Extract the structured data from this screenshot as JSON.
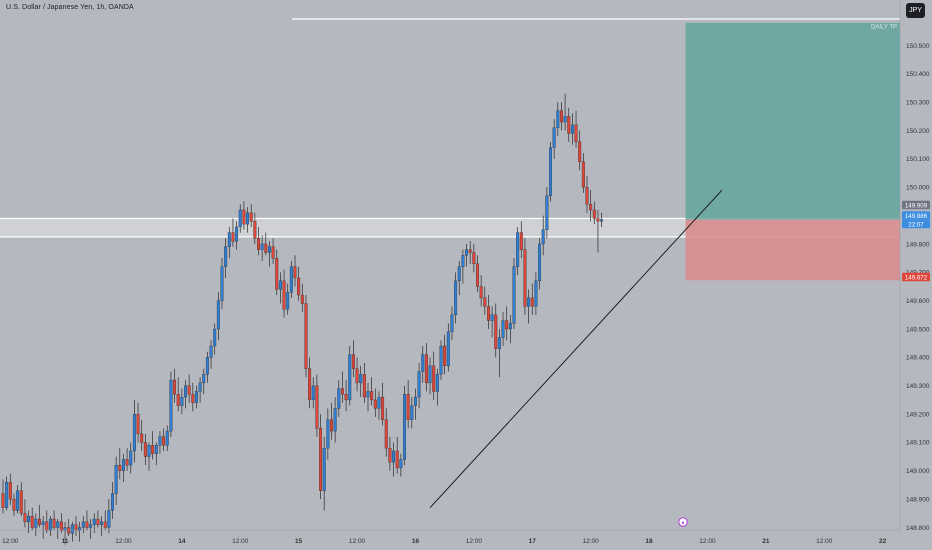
{
  "header": {
    "title": "U.S. Dollar / Japanese Yen, 1h, OANDA",
    "currency_button": "JPY"
  },
  "chart_data": {
    "type": "candlestick",
    "title": "U.S. Dollar / Japanese Yen, 1h, OANDA",
    "ylim": [
      148.8,
      150.58
    ],
    "y_ticks": [
      "148.800",
      "148.900",
      "149.000",
      "149.100",
      "149.200",
      "149.300",
      "149.400",
      "149.500",
      "149.600",
      "149.700",
      "149.800",
      "149.900",
      "150.000",
      "150.100",
      "150.200",
      "150.300",
      "150.400",
      "150.500"
    ],
    "x_ticks": [
      "12:00",
      "11",
      "12:00",
      "14",
      "12:00",
      "15",
      "12:00",
      "16",
      "12:00",
      "17",
      "12:00",
      "18",
      "12:00",
      "21",
      "12:00",
      "22"
    ],
    "x_index_range": [
      0,
      162
    ],
    "x_tick_index": [
      2,
      17,
      33,
      49,
      65,
      81,
      97,
      113,
      129,
      145,
      161,
      177,
      193,
      209,
      225,
      241
    ],
    "colors": {
      "up": "#2f7fd6",
      "down": "#e0453a",
      "target_zone": "#5fa49b",
      "stop_zone": "#d8898a",
      "support_band": "#ffffff"
    },
    "price_labels": [
      {
        "text": "149.909",
        "bg": "#707582"
      },
      {
        "text": "149.886",
        "bg": "#3b8de0"
      },
      {
        "text": "22:07",
        "bg": "#3b8de0"
      },
      {
        "text": "149.672",
        "bg": "#e0453a"
      }
    ],
    "annotations": [
      {
        "text": "DAILY TP",
        "price": 150.55
      },
      {
        "type": "hline",
        "price": 150.585
      },
      {
        "type": "support_band",
        "from": 149.825,
        "to": 149.89
      },
      {
        "type": "trendline",
        "from": [
          117,
          148.87
        ],
        "to": [
          197,
          149.99
        ]
      },
      {
        "type": "long_position",
        "x_from": 187,
        "x_to": 256,
        "entry": 149.886,
        "target": 150.58,
        "stop": 149.672
      }
    ],
    "candles": [
      [
        148.92,
        148.97,
        148.85,
        148.87
      ],
      [
        148.87,
        148.98,
        148.86,
        148.96
      ],
      [
        148.96,
        148.99,
        148.88,
        148.9
      ],
      [
        148.9,
        148.92,
        148.84,
        148.86
      ],
      [
        148.86,
        148.95,
        148.85,
        148.93
      ],
      [
        148.93,
        148.96,
        148.84,
        148.85
      ],
      [
        148.85,
        148.9,
        148.8,
        148.82
      ],
      [
        148.82,
        148.86,
        148.78,
        148.84
      ],
      [
        148.84,
        148.87,
        148.79,
        148.8
      ],
      [
        148.8,
        148.85,
        148.77,
        148.83
      ],
      [
        148.83,
        148.88,
        148.8,
        148.81
      ],
      [
        148.81,
        148.84,
        148.76,
        148.82
      ],
      [
        148.82,
        148.86,
        148.78,
        148.79
      ],
      [
        148.79,
        148.84,
        148.77,
        148.83
      ],
      [
        148.83,
        148.86,
        148.79,
        148.8
      ],
      [
        148.8,
        148.83,
        148.76,
        148.82
      ],
      [
        148.82,
        148.85,
        148.78,
        148.79
      ],
      [
        148.79,
        148.82,
        148.74,
        148.8
      ],
      [
        148.8,
        148.83,
        148.77,
        148.78
      ],
      [
        148.78,
        148.82,
        148.75,
        148.81
      ],
      [
        148.81,
        148.84,
        148.77,
        148.79
      ],
      [
        148.79,
        148.82,
        148.75,
        148.8
      ],
      [
        148.8,
        148.84,
        148.78,
        148.82
      ],
      [
        148.82,
        148.86,
        148.79,
        148.8
      ],
      [
        148.8,
        148.83,
        148.76,
        148.81
      ],
      [
        148.81,
        148.85,
        148.78,
        148.83
      ],
      [
        148.83,
        148.86,
        148.8,
        148.81
      ],
      [
        148.81,
        148.84,
        148.77,
        148.82
      ],
      [
        148.82,
        148.86,
        148.79,
        148.8
      ],
      [
        148.8,
        148.9,
        148.78,
        148.86
      ],
      [
        148.86,
        148.96,
        148.83,
        148.92
      ],
      [
        148.92,
        149.05,
        148.88,
        149.02
      ],
      [
        149.02,
        149.08,
        148.97,
        149.0
      ],
      [
        149.0,
        149.06,
        148.96,
        149.04
      ],
      [
        149.04,
        149.08,
        149.0,
        149.02
      ],
      [
        149.02,
        149.1,
        148.99,
        149.07
      ],
      [
        149.07,
        149.25,
        149.03,
        149.2
      ],
      [
        149.2,
        149.24,
        149.1,
        149.13
      ],
      [
        149.13,
        149.18,
        149.07,
        149.1
      ],
      [
        149.1,
        149.13,
        149.02,
        149.05
      ],
      [
        149.05,
        149.1,
        149.0,
        149.09
      ],
      [
        149.09,
        149.14,
        149.04,
        149.06
      ],
      [
        149.06,
        149.1,
        149.02,
        149.09
      ],
      [
        149.09,
        149.14,
        149.06,
        149.12
      ],
      [
        149.12,
        149.15,
        149.07,
        149.09
      ],
      [
        149.09,
        149.16,
        149.07,
        149.14
      ],
      [
        149.14,
        149.35,
        149.12,
        149.32
      ],
      [
        149.32,
        149.36,
        149.24,
        149.27
      ],
      [
        149.27,
        149.33,
        149.21,
        149.23
      ],
      [
        149.23,
        149.29,
        149.2,
        149.26
      ],
      [
        149.26,
        149.32,
        149.22,
        149.3
      ],
      [
        149.3,
        149.34,
        149.24,
        149.27
      ],
      [
        149.27,
        149.31,
        149.21,
        149.24
      ],
      [
        149.24,
        149.3,
        149.22,
        149.28
      ],
      [
        149.28,
        149.33,
        149.24,
        149.31
      ],
      [
        149.31,
        149.36,
        149.27,
        149.34
      ],
      [
        149.34,
        149.42,
        149.31,
        149.4
      ],
      [
        149.4,
        149.46,
        149.36,
        149.44
      ],
      [
        149.44,
        149.52,
        149.41,
        149.5
      ],
      [
        149.5,
        149.63,
        149.46,
        149.6
      ],
      [
        149.6,
        149.75,
        149.57,
        149.72
      ],
      [
        149.72,
        149.82,
        149.68,
        149.79
      ],
      [
        149.79,
        149.86,
        149.75,
        149.84
      ],
      [
        149.84,
        149.89,
        149.79,
        149.81
      ],
      [
        149.81,
        149.88,
        149.78,
        149.86
      ],
      [
        149.86,
        149.94,
        149.84,
        149.92
      ],
      [
        149.92,
        149.95,
        149.85,
        149.87
      ],
      [
        149.87,
        149.93,
        149.84,
        149.91
      ],
      [
        149.91,
        149.94,
        149.86,
        149.88
      ],
      [
        149.88,
        149.91,
        149.8,
        149.82
      ],
      [
        149.82,
        149.86,
        149.76,
        149.78
      ],
      [
        149.78,
        149.83,
        149.74,
        149.8
      ],
      [
        149.8,
        149.84,
        149.76,
        149.77
      ],
      [
        149.77,
        149.81,
        149.72,
        149.79
      ],
      [
        149.79,
        149.82,
        149.73,
        149.75
      ],
      [
        149.75,
        149.78,
        149.62,
        149.64
      ],
      [
        149.64,
        149.7,
        149.59,
        149.67
      ],
      [
        149.67,
        149.71,
        149.54,
        149.57
      ],
      [
        149.57,
        149.66,
        149.55,
        149.63
      ],
      [
        149.63,
        149.74,
        149.61,
        149.72
      ],
      [
        149.72,
        149.76,
        149.65,
        149.68
      ],
      [
        149.68,
        149.72,
        149.6,
        149.62
      ],
      [
        149.62,
        149.66,
        149.56,
        149.59
      ],
      [
        149.59,
        149.62,
        149.33,
        149.36
      ],
      [
        149.36,
        149.4,
        149.22,
        149.25
      ],
      [
        149.25,
        149.33,
        149.22,
        149.3
      ],
      [
        149.3,
        149.34,
        149.12,
        149.15
      ],
      [
        149.15,
        149.2,
        148.9,
        148.93
      ],
      [
        148.93,
        149.12,
        148.86,
        149.08
      ],
      [
        149.08,
        149.22,
        149.04,
        149.18
      ],
      [
        149.18,
        149.24,
        149.11,
        149.14
      ],
      [
        149.14,
        149.26,
        149.1,
        149.22
      ],
      [
        149.22,
        149.32,
        149.19,
        149.29
      ],
      [
        149.29,
        149.35,
        149.24,
        149.27
      ],
      [
        149.27,
        149.32,
        149.21,
        149.25
      ],
      [
        149.25,
        149.44,
        149.23,
        149.41
      ],
      [
        149.41,
        149.46,
        149.33,
        149.36
      ],
      [
        149.36,
        149.4,
        149.28,
        149.31
      ],
      [
        149.31,
        149.37,
        149.26,
        149.34
      ],
      [
        149.34,
        149.38,
        149.24,
        149.26
      ],
      [
        149.26,
        149.31,
        149.21,
        149.28
      ],
      [
        149.28,
        149.33,
        149.23,
        149.25
      ],
      [
        149.25,
        149.29,
        149.19,
        149.22
      ],
      [
        149.22,
        149.28,
        149.18,
        149.26
      ],
      [
        149.26,
        149.31,
        149.16,
        149.18
      ],
      [
        149.18,
        149.22,
        149.05,
        149.08
      ],
      [
        149.08,
        149.12,
        149.0,
        149.03
      ],
      [
        149.03,
        149.1,
        148.98,
        149.07
      ],
      [
        149.07,
        149.12,
        148.99,
        149.01
      ],
      [
        149.01,
        149.06,
        148.98,
        149.04
      ],
      [
        149.04,
        149.3,
        149.02,
        149.27
      ],
      [
        149.27,
        149.32,
        149.15,
        149.18
      ],
      [
        149.18,
        149.26,
        149.15,
        149.23
      ],
      [
        149.23,
        149.29,
        149.18,
        149.26
      ],
      [
        149.26,
        149.38,
        149.22,
        149.35
      ],
      [
        149.35,
        149.44,
        149.31,
        149.41
      ],
      [
        149.41,
        149.45,
        149.28,
        149.31
      ],
      [
        149.31,
        149.4,
        149.27,
        149.37
      ],
      [
        149.37,
        149.42,
        149.25,
        149.28
      ],
      [
        149.28,
        149.36,
        149.23,
        149.34
      ],
      [
        149.34,
        149.46,
        149.32,
        149.44
      ],
      [
        149.44,
        149.48,
        149.34,
        149.37
      ],
      [
        149.37,
        149.52,
        149.35,
        149.49
      ],
      [
        149.49,
        149.58,
        149.46,
        149.55
      ],
      [
        149.55,
        149.7,
        149.52,
        149.67
      ],
      [
        149.67,
        149.74,
        149.62,
        149.72
      ],
      [
        149.72,
        149.78,
        149.66,
        149.76
      ],
      [
        149.76,
        149.8,
        149.72,
        149.78
      ],
      [
        149.78,
        149.81,
        149.73,
        149.77
      ],
      [
        149.77,
        149.8,
        149.7,
        149.73
      ],
      [
        149.73,
        149.76,
        149.63,
        149.65
      ],
      [
        149.65,
        149.69,
        149.58,
        149.61
      ],
      [
        149.61,
        149.65,
        149.55,
        149.58
      ],
      [
        149.58,
        149.62,
        149.5,
        149.53
      ],
      [
        149.53,
        149.58,
        149.47,
        149.55
      ],
      [
        149.55,
        149.59,
        149.4,
        149.43
      ],
      [
        149.43,
        149.5,
        149.33,
        149.47
      ],
      [
        149.47,
        149.56,
        149.44,
        149.53
      ],
      [
        149.53,
        149.58,
        149.46,
        149.5
      ],
      [
        149.5,
        149.55,
        149.45,
        149.52
      ],
      [
        149.52,
        149.75,
        149.5,
        149.72
      ],
      [
        149.72,
        149.86,
        149.69,
        149.84
      ],
      [
        149.84,
        149.88,
        149.75,
        149.78
      ],
      [
        149.78,
        149.82,
        149.55,
        149.58
      ],
      [
        149.58,
        149.64,
        149.52,
        149.61
      ],
      [
        149.61,
        149.66,
        149.55,
        149.58
      ],
      [
        149.58,
        149.7,
        149.55,
        149.67
      ],
      [
        149.67,
        149.82,
        149.64,
        149.8
      ],
      [
        149.8,
        149.9,
        149.76,
        149.85
      ],
      [
        149.85,
        150.0,
        149.82,
        149.97
      ],
      [
        149.97,
        150.16,
        149.95,
        150.14
      ],
      [
        150.14,
        150.24,
        150.1,
        150.21
      ],
      [
        150.21,
        150.3,
        150.18,
        150.27
      ],
      [
        150.27,
        150.3,
        150.2,
        150.23
      ],
      [
        150.23,
        150.33,
        150.2,
        150.25
      ],
      [
        150.25,
        150.28,
        150.16,
        150.19
      ],
      [
        150.19,
        150.26,
        150.15,
        150.22
      ],
      [
        150.22,
        150.27,
        150.14,
        150.16
      ],
      [
        150.16,
        150.2,
        150.06,
        150.09
      ],
      [
        150.09,
        150.12,
        149.98,
        150.0
      ],
      [
        150.0,
        150.04,
        149.91,
        149.94
      ],
      [
        149.94,
        149.99,
        149.88,
        149.92
      ],
      [
        149.92,
        149.95,
        149.87,
        149.89
      ],
      [
        149.89,
        149.92,
        149.77,
        149.88
      ],
      [
        149.88,
        149.91,
        149.86,
        149.886
      ]
    ]
  }
}
